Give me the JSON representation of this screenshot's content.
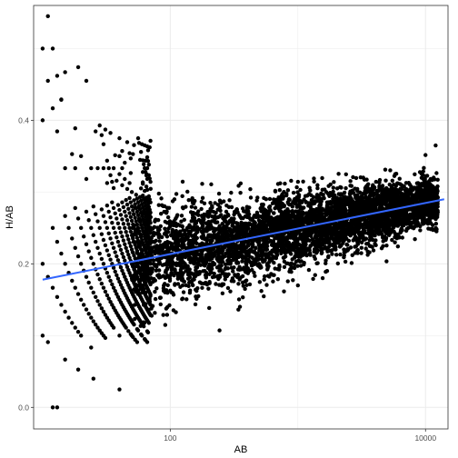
{
  "chart_data": {
    "type": "scatter",
    "title": "",
    "xlabel": "AB",
    "ylabel": "H/AB",
    "x_scale": "log10",
    "xlim": [
      8.5,
      15000
    ],
    "ylim": [
      -0.03,
      0.56
    ],
    "x_ticks": [
      {
        "value": 100,
        "label": "100"
      },
      {
        "value": 10000,
        "label": "10000"
      }
    ],
    "y_ticks": [
      {
        "value": 0.0,
        "label": "0.0"
      },
      {
        "value": 0.2,
        "label": "0.2"
      },
      {
        "value": 0.4,
        "label": "0.4"
      }
    ],
    "grid": true,
    "theme": "bw",
    "legend": "none",
    "colors": {
      "points": "#000000",
      "trend": "#3366ff",
      "grid": "#ebebeb",
      "panel_border": "#333333"
    },
    "series": [
      {
        "kind": "points",
        "visible_extremes": [
          {
            "x": 11,
            "y": 0.545
          },
          {
            "x": 10,
            "y": 0.5
          },
          {
            "x": 12,
            "y": 0.5
          },
          {
            "x": 15,
            "y": 0.467
          },
          {
            "x": 11,
            "y": 0.455
          },
          {
            "x": 19,
            "y": 0.474
          },
          {
            "x": 22,
            "y": 0.455
          },
          {
            "x": 13,
            "y": 0.462
          },
          {
            "x": 10,
            "y": 0.4
          },
          {
            "x": 14,
            "y": 0.429
          },
          {
            "x": 40,
            "y": 0.35
          },
          {
            "x": 60,
            "y": 0.1
          },
          {
            "x": 40,
            "y": 0.025
          },
          {
            "x": 1000,
            "y": 0.17
          },
          {
            "x": 12000,
            "y": 0.365
          }
        ]
      },
      {
        "kind": "smooth",
        "method": "linear",
        "line": [
          {
            "x": 10,
            "y": 0.178
          },
          {
            "x": 14000,
            "y": 0.29
          }
        ]
      }
    ]
  }
}
